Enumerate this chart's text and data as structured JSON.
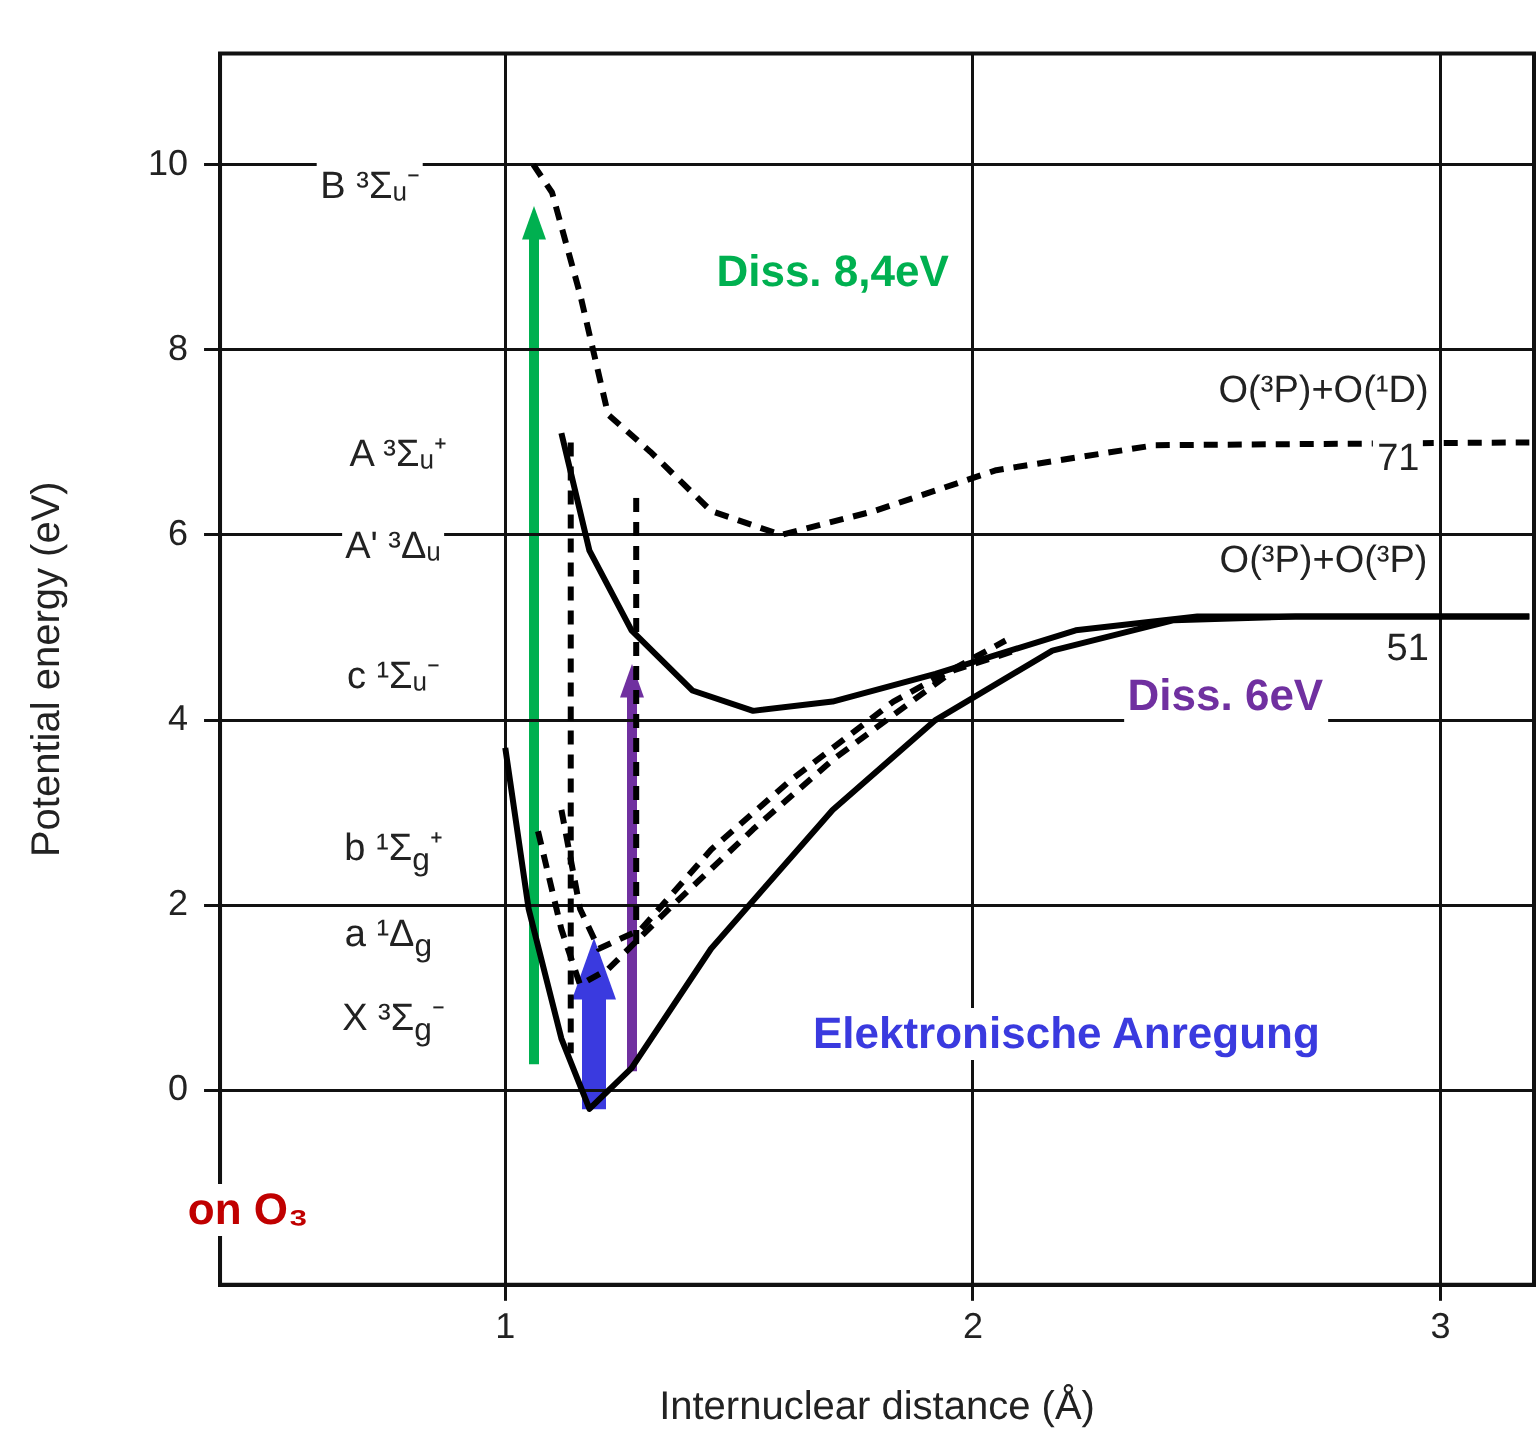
{
  "chart_data": {
    "type": "line",
    "xlabel": "Internuclear distance (Å)",
    "ylabel": "Potential energy (eV)",
    "xlim": [
      0.39,
      3.2
    ],
    "ylim": [
      -2.1,
      11.2
    ],
    "xticks": [
      1,
      2,
      3
    ],
    "yticks": [
      0,
      2,
      4,
      6,
      8,
      10
    ],
    "grid": true,
    "legend": false,
    "marker": "none",
    "series": [
      {
        "color": "#000000",
        "line_style": "solid",
        "x": [
          1.0,
          1.05,
          1.12,
          1.18,
          1.27,
          1.44,
          1.7,
          1.92,
          2.17,
          2.43,
          2.69,
          3.19
        ],
        "values": [
          3.7,
          1.96,
          0.56,
          -0.2,
          0.24,
          1.53,
          3.03,
          4.0,
          4.75,
          5.08,
          5.12,
          5.12
        ]
      },
      {
        "color": "#000000",
        "line_style": "solid",
        "x": [
          1.12,
          1.18,
          1.27,
          1.4,
          1.53,
          1.7,
          1.92,
          2.22,
          2.48,
          3.19
        ],
        "values": [
          7.1,
          5.83,
          4.97,
          4.32,
          4.1,
          4.2,
          4.5,
          4.97,
          5.12,
          5.12
        ]
      },
      {
        "color": "#000000",
        "line_style": "dashed",
        "x": [
          1.06,
          1.1,
          1.16,
          1.22,
          1.31,
          1.44,
          1.59,
          1.79,
          2.05,
          2.39,
          3.19
        ],
        "values": [
          10.0,
          9.7,
          8.6,
          7.3,
          6.9,
          6.26,
          6.0,
          6.26,
          6.7,
          6.97,
          7.0
        ]
      },
      {
        "color": "#000000",
        "line_style": "dashed",
        "x": [
          1.07,
          1.12,
          1.16,
          1.22,
          1.35,
          1.53,
          1.7,
          1.96,
          2.09
        ],
        "values": [
          2.8,
          1.74,
          1.14,
          1.31,
          1.96,
          2.82,
          3.57,
          4.54,
          4.75
        ]
      },
      {
        "color": "#000000",
        "line_style": "dashed",
        "x": [
          1.12,
          1.16,
          1.2,
          1.29,
          1.44,
          1.61,
          1.83,
          2.07
        ],
        "values": [
          3.03,
          1.96,
          1.53,
          1.74,
          2.6,
          3.35,
          4.2,
          4.86
        ]
      },
      {
        "color": "#000000",
        "line_style": "dashed",
        "x": [
          1.14,
          1.14
        ],
        "values": [
          7.0,
          0.4
        ]
      },
      {
        "color": "#000000",
        "line_style": "dashed",
        "x": [
          1.28,
          1.28
        ],
        "values": [
          6.4,
          1.5
        ]
      }
    ],
    "annotations": [
      "B ³Σᵤ⁻",
      "A ³Σᵤ⁺",
      "A' ³Δᵤ",
      "c ¹Σᵤ⁻",
      "b ¹Σ$_{g}$⁺",
      "a ¹Δ$_{g}$",
      "X ³Σ$_{g}$⁻",
      "O(³P)+O(¹D)",
      {
        "text": "71",
        "x": 2.91,
        "y": 6.8
      },
      "O(³P)+O(³P)",
      {
        "text": "51",
        "x": 2.93,
        "y": 4.75
      },
      "Diss. 8,4eV",
      "Diss. 6eV",
      "Elektronische Anregung",
      "on O₃"
    ]
  }
}
